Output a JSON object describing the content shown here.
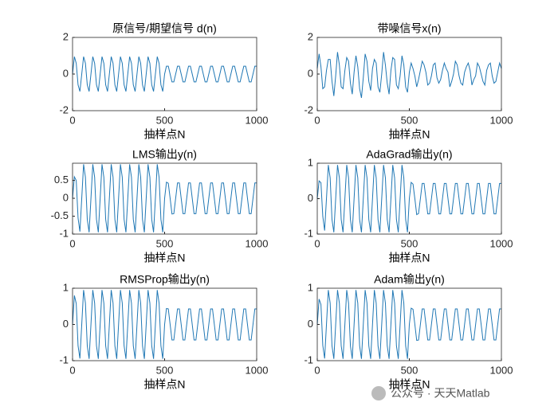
{
  "chart_data": [
    {
      "type": "line",
      "title": "原信号/期望信号 d(n)",
      "xlabel": "抽样点N",
      "color": "#1f77b4",
      "x": [
        0,
        10,
        20,
        30,
        40,
        50,
        60,
        70,
        80,
        90,
        100,
        110,
        120,
        130,
        140,
        150,
        160,
        170,
        180,
        190,
        200,
        210,
        220,
        230,
        240,
        250,
        260,
        270,
        280,
        290,
        300,
        310,
        320,
        330,
        340,
        350,
        360,
        370,
        380,
        390,
        400,
        410,
        420,
        430,
        440,
        450,
        460,
        470,
        480,
        490,
        500,
        510,
        520,
        530,
        540,
        550,
        560,
        570,
        580,
        590,
        600,
        610,
        620,
        630,
        640,
        650,
        660,
        670,
        680,
        690,
        700,
        710,
        720,
        730,
        740,
        750,
        760,
        770,
        780,
        790,
        800,
        810,
        820,
        830,
        840,
        850,
        860,
        870,
        880,
        890,
        900,
        910,
        920,
        930,
        940,
        950,
        960,
        970,
        980,
        990,
        1000
      ],
      "values": [
        0,
        0.95,
        0.59,
        -0.59,
        -0.95,
        0,
        0.95,
        0.59,
        -0.59,
        -0.95,
        0,
        0.95,
        0.59,
        -0.59,
        -0.95,
        0,
        0.95,
        0.59,
        -0.59,
        -0.95,
        0,
        0.95,
        0.59,
        -0.59,
        -0.95,
        0,
        0.95,
        0.59,
        -0.59,
        -0.95,
        0,
        0.95,
        0.59,
        -0.59,
        -0.95,
        0,
        0.95,
        0.59,
        -0.59,
        -0.95,
        0,
        0.95,
        0.59,
        -0.59,
        -0.95,
        0,
        0.95,
        0.59,
        -0.59,
        -0.95,
        0,
        0.43,
        0.43,
        0,
        -0.43,
        -0.43,
        0,
        0.43,
        0.43,
        0,
        -0.43,
        -0.43,
        0,
        0.43,
        0.43,
        0,
        -0.43,
        -0.43,
        0,
        0.43,
        0.43,
        0,
        -0.43,
        -0.43,
        0,
        0.43,
        0.43,
        0,
        -0.43,
        -0.43,
        0,
        0.43,
        0.43,
        0,
        -0.43,
        -0.43,
        0,
        0.43,
        0.43,
        0,
        -0.43,
        -0.43,
        0,
        0.43,
        0.43,
        0,
        -0.43,
        -0.43,
        0,
        0.43,
        0.43
      ],
      "xlim": [
        0,
        1000
      ],
      "xticks": [
        0,
        500,
        1000
      ],
      "ylim": [
        -2,
        2
      ],
      "yticks": [
        -2,
        0,
        2
      ]
    },
    {
      "type": "line",
      "title": "带噪信号x(n)",
      "xlabel": "抽样点N",
      "color": "#1f77b4",
      "x": [
        0,
        10,
        20,
        30,
        40,
        50,
        60,
        70,
        80,
        90,
        100,
        110,
        120,
        130,
        140,
        150,
        160,
        170,
        180,
        190,
        200,
        210,
        220,
        230,
        240,
        250,
        260,
        270,
        280,
        290,
        300,
        310,
        320,
        330,
        340,
        350,
        360,
        370,
        380,
        390,
        400,
        410,
        420,
        430,
        440,
        450,
        460,
        470,
        480,
        490,
        500,
        510,
        520,
        530,
        540,
        550,
        560,
        570,
        580,
        590,
        600,
        610,
        620,
        630,
        640,
        650,
        660,
        670,
        680,
        690,
        700,
        710,
        720,
        730,
        740,
        750,
        760,
        770,
        780,
        790,
        800,
        810,
        820,
        830,
        840,
        850,
        860,
        870,
        880,
        890,
        900,
        910,
        920,
        930,
        940,
        950,
        960,
        970,
        980,
        990,
        1000
      ],
      "values": [
        0.3,
        1.1,
        0.4,
        -0.8,
        -0.7,
        0.2,
        0.8,
        0.8,
        -0.4,
        -1.2,
        -0.1,
        1.2,
        0.5,
        -0.7,
        -0.8,
        0.2,
        0.9,
        0.7,
        -0.5,
        -1.1,
        0.1,
        1.0,
        0.4,
        -0.8,
        -1.3,
        -0.2,
        1.1,
        0.7,
        -0.4,
        -0.9,
        0.3,
        0.8,
        0.6,
        -0.7,
        -1.0,
        0,
        1.2,
        0.5,
        -0.5,
        -1.1,
        0.2,
        0.9,
        0.8,
        -0.6,
        -0.8,
        -0.1,
        1.0,
        0.5,
        -0.7,
        -1.0,
        0.1,
        0.6,
        0.3,
        -0.1,
        -0.7,
        -0.3,
        0.2,
        0.7,
        0.5,
        0.1,
        -0.6,
        -0.5,
        -0.1,
        0.5,
        0.6,
        -0.2,
        -0.5,
        -0.3,
        0.2,
        0.6,
        0.3,
        0.1,
        -0.7,
        -0.4,
        0,
        0.7,
        0.5,
        -0.1,
        -0.5,
        -0.6,
        0.1,
        0.4,
        0.6,
        0.2,
        -0.6,
        -0.3,
        -0.1,
        0.6,
        0.4,
        0,
        -0.4,
        -0.6,
        0.2,
        0.5,
        0.6,
        -0.1,
        -0.5,
        -0.4,
        0.1,
        0.6,
        0.3
      ],
      "xlim": [
        0,
        1000
      ],
      "xticks": [
        0,
        500,
        1000
      ],
      "ylim": [
        -2,
        2
      ],
      "yticks": [
        -2,
        0,
        2
      ]
    },
    {
      "type": "line",
      "title": "LMS输出y(n)",
      "xlabel": "抽样点N",
      "color": "#1f77b4",
      "x": [
        0,
        10,
        20,
        30,
        40,
        50,
        60,
        70,
        80,
        90,
        100,
        110,
        120,
        130,
        140,
        150,
        160,
        170,
        180,
        190,
        200,
        210,
        220,
        230,
        240,
        250,
        260,
        270,
        280,
        290,
        300,
        310,
        320,
        330,
        340,
        350,
        360,
        370,
        380,
        390,
        400,
        410,
        420,
        430,
        440,
        450,
        460,
        470,
        480,
        490,
        500,
        510,
        520,
        530,
        540,
        550,
        560,
        570,
        580,
        590,
        600,
        610,
        620,
        630,
        640,
        650,
        660,
        670,
        680,
        690,
        700,
        710,
        720,
        730,
        740,
        750,
        760,
        770,
        780,
        790,
        800,
        810,
        820,
        830,
        840,
        850,
        860,
        870,
        880,
        890,
        900,
        910,
        920,
        930,
        940,
        950,
        960,
        970,
        980,
        990,
        1000
      ],
      "values": [
        0,
        0.6,
        0.5,
        -0.55,
        -0.93,
        0,
        0.95,
        0.59,
        -0.59,
        -0.95,
        0,
        0.95,
        0.59,
        -0.59,
        -0.95,
        0,
        0.95,
        0.59,
        -0.59,
        -0.95,
        0,
        0.95,
        0.59,
        -0.59,
        -0.95,
        0,
        0.95,
        0.59,
        -0.59,
        -0.95,
        0,
        0.95,
        0.59,
        -0.59,
        -0.95,
        0,
        0.95,
        0.59,
        -0.59,
        -0.95,
        0,
        0.95,
        0.59,
        -0.59,
        -0.95,
        0,
        0.95,
        0.59,
        -0.59,
        -0.95,
        0,
        0.45,
        0.42,
        0,
        -0.44,
        -0.43,
        0,
        0.43,
        0.43,
        0,
        -0.43,
        -0.43,
        0,
        0.43,
        0.43,
        0,
        -0.43,
        -0.43,
        0,
        0.43,
        0.43,
        0,
        -0.43,
        -0.43,
        0,
        0.43,
        0.43,
        0,
        -0.43,
        -0.43,
        0,
        0.43,
        0.43,
        0,
        -0.43,
        -0.43,
        0,
        0.43,
        0.43,
        0,
        -0.43,
        -0.43,
        0,
        0.43,
        0.43,
        0,
        -0.43,
        -0.43,
        0,
        0.43,
        0.43
      ],
      "xlim": [
        0,
        1000
      ],
      "xticks": [
        0,
        500,
        1000
      ],
      "ylim": [
        -1,
        0.98
      ],
      "yticks": [
        -1,
        -0.5,
        0,
        0.5
      ]
    },
    {
      "type": "line",
      "title": "AdaGrad输出y(n)",
      "xlabel": "抽样点N",
      "color": "#1f77b4",
      "x": [
        0,
        10,
        20,
        30,
        40,
        50,
        60,
        70,
        80,
        90,
        100,
        110,
        120,
        130,
        140,
        150,
        160,
        170,
        180,
        190,
        200,
        210,
        220,
        230,
        240,
        250,
        260,
        270,
        280,
        290,
        300,
        310,
        320,
        330,
        340,
        350,
        360,
        370,
        380,
        390,
        400,
        410,
        420,
        430,
        440,
        450,
        460,
        470,
        480,
        490,
        500,
        510,
        520,
        530,
        540,
        550,
        560,
        570,
        580,
        590,
        600,
        610,
        620,
        630,
        640,
        650,
        660,
        670,
        680,
        690,
        700,
        710,
        720,
        730,
        740,
        750,
        760,
        770,
        780,
        790,
        800,
        810,
        820,
        830,
        840,
        850,
        860,
        870,
        880,
        890,
        900,
        910,
        920,
        930,
        940,
        950,
        960,
        970,
        980,
        990,
        1000
      ],
      "values": [
        0,
        0.5,
        0.45,
        -0.5,
        -0.9,
        0,
        0.95,
        0.59,
        -0.59,
        -0.95,
        0,
        0.95,
        0.59,
        -0.59,
        -0.95,
        0,
        0.95,
        0.59,
        -0.59,
        -0.95,
        0,
        0.95,
        0.59,
        -0.59,
        -0.95,
        0,
        0.95,
        0.59,
        -0.59,
        -0.95,
        0,
        0.95,
        0.59,
        -0.59,
        -0.95,
        0,
        0.95,
        0.59,
        -0.59,
        -0.95,
        0,
        0.95,
        0.59,
        -0.59,
        -0.95,
        0,
        0.95,
        0.59,
        -0.59,
        -0.95,
        0,
        0.46,
        0.41,
        0,
        -0.45,
        -0.42,
        0,
        0.43,
        0.43,
        0,
        -0.43,
        -0.43,
        0,
        0.43,
        0.43,
        0,
        -0.43,
        -0.43,
        0,
        0.43,
        0.43,
        0,
        -0.43,
        -0.43,
        0,
        0.43,
        0.43,
        0,
        -0.43,
        -0.43,
        0,
        0.43,
        0.43,
        0,
        -0.43,
        -0.43,
        0,
        0.43,
        0.43,
        0,
        -0.43,
        -0.43,
        0,
        0.43,
        0.43,
        0,
        -0.43,
        -0.43,
        0,
        0.43,
        0.43
      ],
      "xlim": [
        0,
        1000
      ],
      "xticks": [
        0,
        500,
        1000
      ],
      "ylim": [
        -1,
        1
      ],
      "yticks": [
        -1,
        0,
        1
      ]
    },
    {
      "type": "line",
      "title": "RMSProp输出y(n)",
      "xlabel": "抽样点N",
      "color": "#1f77b4",
      "x": [
        0,
        10,
        20,
        30,
        40,
        50,
        60,
        70,
        80,
        90,
        100,
        110,
        120,
        130,
        140,
        150,
        160,
        170,
        180,
        190,
        200,
        210,
        220,
        230,
        240,
        250,
        260,
        270,
        280,
        290,
        300,
        310,
        320,
        330,
        340,
        350,
        360,
        370,
        380,
        390,
        400,
        410,
        420,
        430,
        440,
        450,
        460,
        470,
        480,
        490,
        500,
        510,
        520,
        530,
        540,
        550,
        560,
        570,
        580,
        590,
        600,
        610,
        620,
        630,
        640,
        650,
        660,
        670,
        680,
        690,
        700,
        710,
        720,
        730,
        740,
        750,
        760,
        770,
        780,
        790,
        800,
        810,
        820,
        830,
        840,
        850,
        860,
        870,
        880,
        890,
        900,
        910,
        920,
        930,
        940,
        950,
        960,
        970,
        980,
        990,
        1000
      ],
      "values": [
        0,
        0.8,
        0.58,
        -0.59,
        -0.94,
        0,
        0.95,
        0.59,
        -0.59,
        -0.95,
        0,
        0.95,
        0.59,
        -0.59,
        -0.95,
        0,
        0.95,
        0.59,
        -0.59,
        -0.95,
        0,
        0.95,
        0.59,
        -0.59,
        -0.95,
        0,
        0.95,
        0.59,
        -0.59,
        -0.95,
        0,
        0.95,
        0.59,
        -0.59,
        -0.95,
        0,
        0.95,
        0.59,
        -0.59,
        -0.95,
        0,
        0.95,
        0.59,
        -0.59,
        -0.95,
        0,
        0.95,
        0.59,
        -0.59,
        -0.95,
        0,
        0.44,
        0.43,
        0,
        -0.43,
        -0.43,
        0,
        0.43,
        0.43,
        0,
        -0.43,
        -0.43,
        0,
        0.43,
        0.43,
        0,
        -0.43,
        -0.43,
        0,
        0.43,
        0.43,
        0,
        -0.43,
        -0.43,
        0,
        0.43,
        0.43,
        0,
        -0.43,
        -0.43,
        0,
        0.43,
        0.43,
        0,
        -0.43,
        -0.43,
        0,
        0.43,
        0.43,
        0,
        -0.43,
        -0.43,
        0,
        0.43,
        0.43,
        0,
        -0.43,
        -0.43,
        0,
        0.43,
        0.43
      ],
      "xlim": [
        0,
        1000
      ],
      "xticks": [
        0,
        500,
        1000
      ],
      "ylim": [
        -1,
        1
      ],
      "yticks": [
        -1,
        0,
        1
      ]
    },
    {
      "type": "line",
      "title": "Adam输出y(n)",
      "xlabel": "抽样点N",
      "color": "#1f77b4",
      "x": [
        0,
        10,
        20,
        30,
        40,
        50,
        60,
        70,
        80,
        90,
        100,
        110,
        120,
        130,
        140,
        150,
        160,
        170,
        180,
        190,
        200,
        210,
        220,
        230,
        240,
        250,
        260,
        270,
        280,
        290,
        300,
        310,
        320,
        330,
        340,
        350,
        360,
        370,
        380,
        390,
        400,
        410,
        420,
        430,
        440,
        450,
        460,
        470,
        480,
        490,
        500,
        510,
        520,
        530,
        540,
        550,
        560,
        570,
        580,
        590,
        600,
        610,
        620,
        630,
        640,
        650,
        660,
        670,
        680,
        690,
        700,
        710,
        720,
        730,
        740,
        750,
        760,
        770,
        780,
        790,
        800,
        810,
        820,
        830,
        840,
        850,
        860,
        870,
        880,
        890,
        900,
        910,
        920,
        930,
        940,
        950,
        960,
        970,
        980,
        990,
        1000
      ],
      "values": [
        0,
        0.7,
        0.55,
        -0.58,
        -0.94,
        0,
        0.95,
        0.59,
        -0.59,
        -0.95,
        0,
        0.95,
        0.59,
        -0.59,
        -0.95,
        0,
        0.95,
        0.59,
        -0.59,
        -0.95,
        0,
        0.95,
        0.59,
        -0.59,
        -0.95,
        0,
        0.95,
        0.59,
        -0.59,
        -0.95,
        0,
        0.95,
        0.59,
        -0.59,
        -0.95,
        0,
        0.95,
        0.59,
        -0.59,
        -0.95,
        0,
        0.95,
        0.59,
        -0.59,
        -0.95,
        0,
        0.95,
        0.59,
        -0.59,
        -0.95,
        0,
        0.45,
        0.42,
        0,
        -0.44,
        -0.43,
        0,
        0.43,
        0.43,
        0,
        -0.43,
        -0.43,
        0,
        0.43,
        0.43,
        0,
        -0.43,
        -0.43,
        0,
        0.43,
        0.43,
        0,
        -0.43,
        -0.43,
        0,
        0.43,
        0.43,
        0,
        -0.43,
        -0.43,
        0,
        0.43,
        0.43,
        0,
        -0.43,
        -0.43,
        0,
        0.43,
        0.43,
        0,
        -0.43,
        -0.43,
        0,
        0.43,
        0.43,
        0,
        -0.43,
        -0.43,
        0,
        0.43,
        0.43
      ],
      "xlim": [
        0,
        1000
      ],
      "xticks": [
        0,
        500,
        1000
      ],
      "ylim": [
        -1,
        1
      ],
      "yticks": [
        -1,
        0,
        1
      ]
    }
  ],
  "watermark": "公众号 · 天天Matlab"
}
